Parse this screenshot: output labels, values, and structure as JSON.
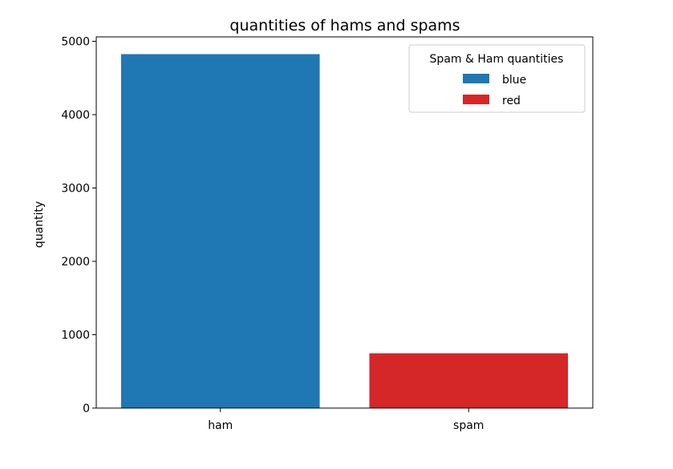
{
  "chart_data": {
    "type": "bar",
    "title": "quantities of hams and spams",
    "xlabel": "",
    "ylabel": "quantity",
    "categories": [
      "ham",
      "spam"
    ],
    "values": [
      4825,
      747
    ],
    "colors": [
      "#1f77b4",
      "#d62728"
    ],
    "ylim": [
      0,
      5060
    ],
    "yticks": [
      0,
      1000,
      2000,
      3000,
      4000,
      5000
    ],
    "ytick_labels": [
      "0",
      "1000",
      "2000",
      "3000",
      "4000",
      "5000"
    ],
    "grid": false,
    "legend": {
      "title": "Spam & Ham quantities",
      "placement": "top-right",
      "entries": [
        {
          "label": "blue",
          "color": "#1f77b4"
        },
        {
          "label": "red",
          "color": "#d62728"
        }
      ]
    }
  }
}
